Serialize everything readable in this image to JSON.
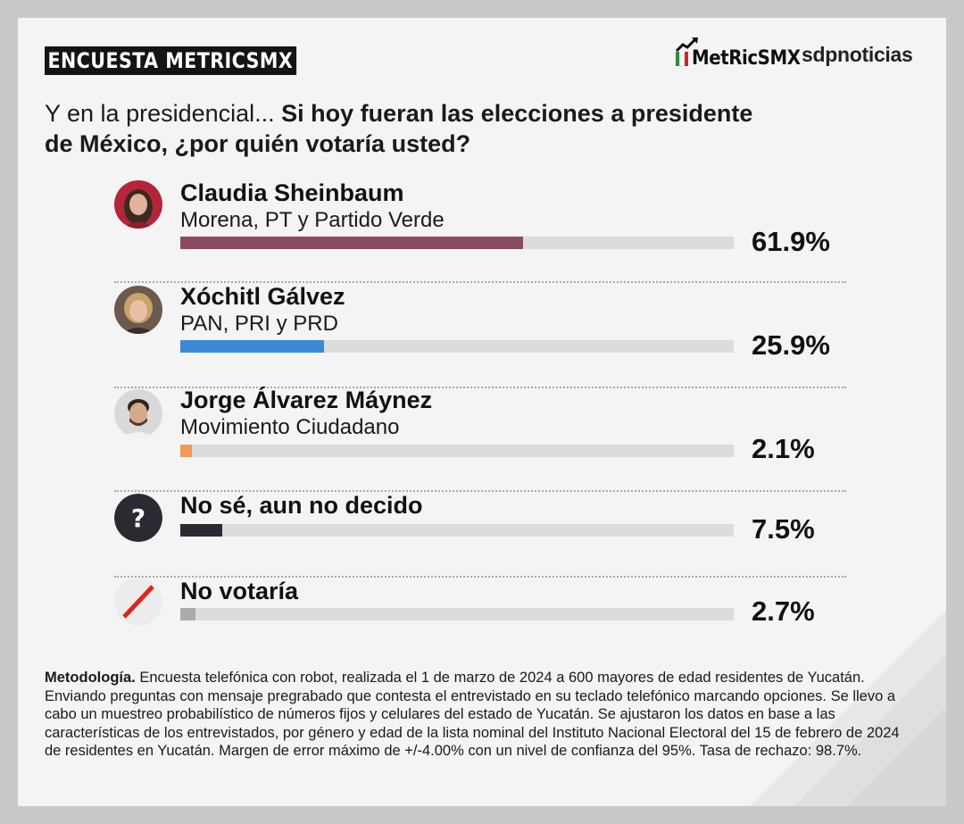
{
  "header": {
    "badge": "ENCUESTA METRICSMX",
    "brand_metrics": "MetRicSMX",
    "brand_sdp": "sdpnoticias"
  },
  "question": {
    "lead": "Y en la presidencial... ",
    "bold": "Si hoy fueran las elecciones a presidente de México, ¿por quién votaría usted?"
  },
  "chart_data": {
    "type": "bar",
    "categories": [
      "Claudia Sheinbaum",
      "Xóchitl Gálvez",
      "Jorge Álvarez Máynez",
      "No sé, aun no decido",
      "No votaría"
    ],
    "series": [
      {
        "values": [
          61.9,
          25.9,
          2.1,
          7.5,
          2.7
        ]
      }
    ],
    "xlim": [
      0,
      100
    ],
    "rows": [
      {
        "name": "Claudia Sheinbaum",
        "party": "Morena, PT y Partido Verde",
        "value": 61.9,
        "label": "61.9%",
        "color": "#8b4a62",
        "icon": "claudia-sheinbaum-portrait"
      },
      {
        "name": "Xóchitl Gálvez",
        "party": "PAN, PRI y PRD",
        "value": 25.9,
        "label": "25.9%",
        "color": "#3a8ad6",
        "icon": "xochitl-galvez-portrait"
      },
      {
        "name": "Jorge Álvarez Máynez",
        "party": "Movimiento Ciudadano",
        "value": 2.1,
        "label": "2.1%",
        "color": "#f0995a",
        "icon": "jorge-alvarez-maynez-portrait"
      },
      {
        "name": "No sé, aun no decido",
        "party": "",
        "value": 7.5,
        "label": "7.5%",
        "color": "#2b2a33",
        "icon": "question-mark-icon"
      },
      {
        "name": "No votaría",
        "party": "",
        "value": 2.7,
        "label": "2.7%",
        "color": "#a9abae",
        "icon": "no-vote-slash-icon"
      }
    ]
  },
  "methodology": {
    "title": "Metodología.",
    "text": " Encuesta telefónica con robot, realizada el 1 de marzo de 2024 a 600 mayores de edad residentes de Yucatán. Enviando preguntas con mensaje pregrabado que contesta el entrevistado en su teclado telefónico marcando opciones. Se llevo a cabo un muestreo probabilístico de números fijos y celulares del estado de Yucatán. Se ajustaron los datos en base a las características de los entrevistados, por género y edad de la lista nominal del Instituto Nacional Electoral del 15 de febrero de 2024 de residentes en Yucatán. Margen de error máximo de +/-4.00% con un nivel de confianza del 95%. Tasa de rechazo: 98.7%."
  }
}
